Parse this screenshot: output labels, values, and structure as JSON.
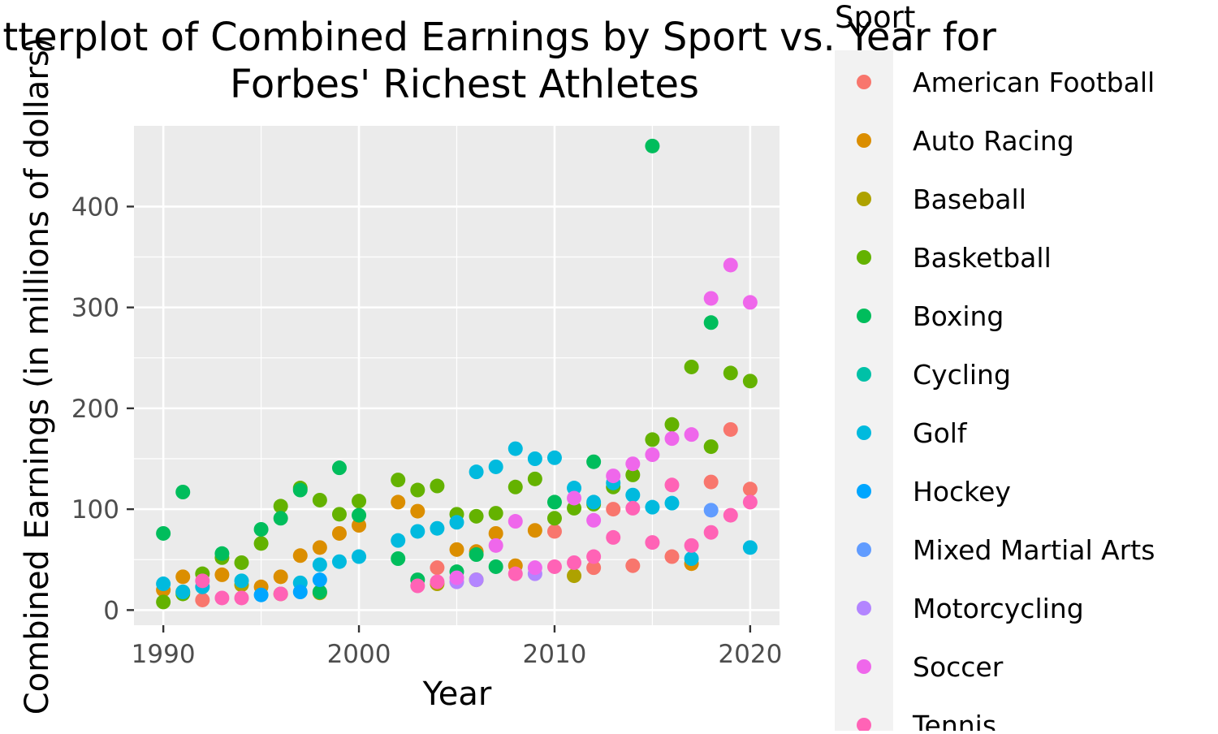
{
  "chart_data": {
    "type": "scatter",
    "title": "Scatterplot of Combined Earnings by Sport vs. Year for Forbes' Richest Athletes",
    "title_lines": [
      "Scatterplot of Combined Earnings by Sport vs. Year for",
      "Forbes' Richest Athletes"
    ],
    "xlabel": "Year",
    "ylabel": "Combined Earnings (in millions of dollars)",
    "xlim": [
      1988.5,
      2021.5
    ],
    "ylim": [
      -15,
      480
    ],
    "x_ticks": [
      1990,
      2000,
      2010,
      2020
    ],
    "y_ticks": [
      0,
      100,
      200,
      300,
      400
    ],
    "grid": true,
    "legend_title": "Sport",
    "legend_position": "right",
    "series": [
      {
        "name": "American Football",
        "color": "#F8766D",
        "points": [
          [
            1992,
            10
          ],
          [
            2004,
            42
          ],
          [
            2010,
            78
          ],
          [
            2012,
            42
          ],
          [
            2013,
            100
          ],
          [
            2014,
            44
          ],
          [
            2016,
            53
          ],
          [
            2018,
            127
          ],
          [
            2019,
            179
          ],
          [
            2020,
            120
          ]
        ]
      },
      {
        "name": "Auto Racing",
        "color": "#DB8E00",
        "points": [
          [
            1990,
            20
          ],
          [
            1991,
            33
          ],
          [
            1993,
            35
          ],
          [
            1995,
            23
          ],
          [
            1996,
            33
          ],
          [
            1997,
            54
          ],
          [
            1998,
            62
          ],
          [
            1999,
            76
          ],
          [
            2000,
            84
          ],
          [
            2002,
            107
          ],
          [
            2003,
            98
          ],
          [
            2005,
            60
          ],
          [
            2006,
            58
          ],
          [
            2007,
            76
          ],
          [
            2008,
            44
          ],
          [
            2009,
            79
          ],
          [
            2017,
            46
          ]
        ]
      },
      {
        "name": "Baseball",
        "color": "#AEA200",
        "points": [
          [
            1991,
            18
          ],
          [
            1994,
            25
          ],
          [
            1996,
            16
          ],
          [
            1998,
            17
          ],
          [
            2004,
            26
          ],
          [
            2006,
            30
          ],
          [
            2011,
            34
          ]
        ]
      },
      {
        "name": "Basketball",
        "color": "#64B200",
        "points": [
          [
            1990,
            8
          ],
          [
            1991,
            16
          ],
          [
            1992,
            36
          ],
          [
            1993,
            52
          ],
          [
            1994,
            47
          ],
          [
            1995,
            66
          ],
          [
            1996,
            103
          ],
          [
            1997,
            121
          ],
          [
            1998,
            109
          ],
          [
            1999,
            95
          ],
          [
            2000,
            108
          ],
          [
            2002,
            129
          ],
          [
            2003,
            119
          ],
          [
            2004,
            123
          ],
          [
            2005,
            95
          ],
          [
            2006,
            93
          ],
          [
            2007,
            96
          ],
          [
            2008,
            122
          ],
          [
            2009,
            130
          ],
          [
            2010,
            91
          ],
          [
            2011,
            101
          ],
          [
            2012,
            105
          ],
          [
            2013,
            122
          ],
          [
            2014,
            134
          ],
          [
            2015,
            169
          ],
          [
            2016,
            184
          ],
          [
            2017,
            241
          ],
          [
            2018,
            162
          ],
          [
            2019,
            235
          ],
          [
            2020,
            227
          ]
        ]
      },
      {
        "name": "Boxing",
        "color": "#00BD5C",
        "points": [
          [
            1990,
            76
          ],
          [
            1991,
            117
          ],
          [
            1993,
            56
          ],
          [
            1995,
            80
          ],
          [
            1996,
            91
          ],
          [
            1997,
            119
          ],
          [
            1998,
            18
          ],
          [
            1999,
            141
          ],
          [
            2000,
            94
          ],
          [
            2002,
            51
          ],
          [
            2003,
            30
          ],
          [
            2005,
            38
          ],
          [
            2006,
            55
          ],
          [
            2007,
            43
          ],
          [
            2010,
            107
          ],
          [
            2012,
            147
          ],
          [
            2015,
            460
          ],
          [
            2018,
            285
          ]
        ]
      },
      {
        "name": "Cycling",
        "color": "#00C1A7",
        "points": []
      },
      {
        "name": "Golf",
        "color": "#00BADE",
        "points": [
          [
            1990,
            26
          ],
          [
            1991,
            18
          ],
          [
            1992,
            23
          ],
          [
            1994,
            29
          ],
          [
            1997,
            27
          ],
          [
            1998,
            45
          ],
          [
            1999,
            48
          ],
          [
            2000,
            53
          ],
          [
            2002,
            69
          ],
          [
            2003,
            78
          ],
          [
            2004,
            81
          ],
          [
            2005,
            87
          ],
          [
            2006,
            137
          ],
          [
            2007,
            142
          ],
          [
            2008,
            160
          ],
          [
            2009,
            150
          ],
          [
            2010,
            151
          ],
          [
            2011,
            121
          ],
          [
            2012,
            107
          ],
          [
            2013,
            126
          ],
          [
            2014,
            114
          ],
          [
            2015,
            102
          ],
          [
            2016,
            106
          ],
          [
            2017,
            51
          ],
          [
            2020,
            62
          ]
        ]
      },
      {
        "name": "Hockey",
        "color": "#00A6FF",
        "points": [
          [
            1995,
            15
          ],
          [
            1997,
            18
          ],
          [
            1998,
            30
          ]
        ]
      },
      {
        "name": "Mixed Martial Arts",
        "color": "#619CFF",
        "points": [
          [
            2018,
            99
          ]
        ]
      },
      {
        "name": "Motorcycling",
        "color": "#B385FF",
        "points": [
          [
            2005,
            28
          ],
          [
            2006,
            30
          ],
          [
            2009,
            36
          ]
        ]
      },
      {
        "name": "Soccer",
        "color": "#EF67EB",
        "points": [
          [
            2005,
            32
          ],
          [
            2007,
            64
          ],
          [
            2008,
            88
          ],
          [
            2009,
            42
          ],
          [
            2011,
            111
          ],
          [
            2012,
            89
          ],
          [
            2013,
            133
          ],
          [
            2014,
            145
          ],
          [
            2015,
            154
          ],
          [
            2016,
            170
          ],
          [
            2017,
            174
          ],
          [
            2018,
            309
          ],
          [
            2019,
            342
          ],
          [
            2020,
            305
          ]
        ]
      },
      {
        "name": "Tennis",
        "color": "#FF63B6",
        "points": [
          [
            1992,
            29
          ],
          [
            1993,
            12
          ],
          [
            1994,
            12
          ],
          [
            1996,
            16
          ],
          [
            2003,
            24
          ],
          [
            2004,
            28
          ],
          [
            2008,
            36
          ],
          [
            2010,
            43
          ],
          [
            2011,
            47
          ],
          [
            2012,
            53
          ],
          [
            2013,
            72
          ],
          [
            2014,
            101
          ],
          [
            2015,
            67
          ],
          [
            2016,
            124
          ],
          [
            2017,
            64
          ],
          [
            2018,
            77
          ],
          [
            2019,
            94
          ],
          [
            2020,
            107
          ]
        ]
      }
    ]
  }
}
